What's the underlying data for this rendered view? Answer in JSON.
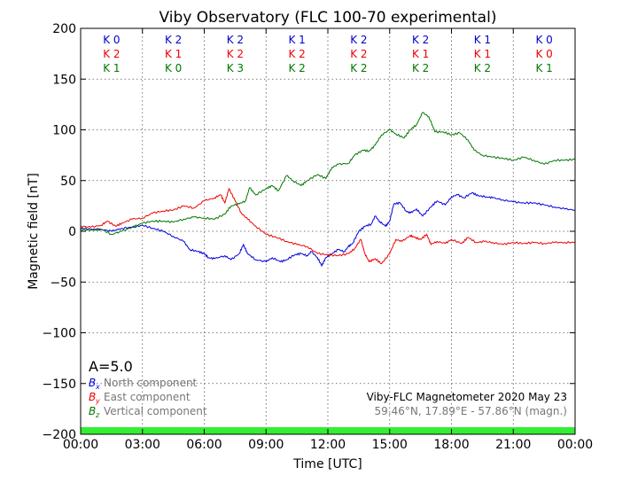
{
  "chart_data": {
    "type": "line",
    "title": "Viby Observatory (FLC 100-70 experimental)",
    "xlabel": "Time [UTC]",
    "ylabel": "Magnetic field [nT]",
    "xlim": [
      0,
      24
    ],
    "ylim": [
      -200,
      200
    ],
    "x_ticks": [
      {
        "value": 0,
        "label": "00:00"
      },
      {
        "value": 3,
        "label": "03:00"
      },
      {
        "value": 6,
        "label": "06:00"
      },
      {
        "value": 9,
        "label": "09:00"
      },
      {
        "value": 12,
        "label": "12:00"
      },
      {
        "value": 15,
        "label": "15:00"
      },
      {
        "value": 18,
        "label": "18:00"
      },
      {
        "value": 21,
        "label": "21:00"
      },
      {
        "value": 24,
        "label": "00:00"
      }
    ],
    "y_ticks": [
      {
        "value": 200,
        "label": "200"
      },
      {
        "value": 150,
        "label": "150"
      },
      {
        "value": 100,
        "label": "100"
      },
      {
        "value": 50,
        "label": "50"
      },
      {
        "value": 0,
        "label": "0"
      },
      {
        "value": -50,
        "label": "−50"
      },
      {
        "value": -100,
        "label": "−100"
      },
      {
        "value": -150,
        "label": "−150"
      },
      {
        "value": -200,
        "label": "−200"
      }
    ],
    "grid": true,
    "activity_band": {
      "ymin": -200,
      "ymax": -193,
      "color": "#33ee33"
    },
    "k_index": {
      "intervals_start": [
        1.5,
        4.5,
        7.5,
        10.5,
        13.5,
        16.5,
        19.5,
        22.5
      ],
      "rows": [
        {
          "color": "#0000cc",
          "labels": [
            "K 0",
            "K 2",
            "K 2",
            "K 1",
            "K 2",
            "K 2",
            "K 1",
            "K 0"
          ]
        },
        {
          "color": "#ee0000",
          "labels": [
            "K 2",
            "K 1",
            "K 2",
            "K 2",
            "K 2",
            "K 1",
            "K 1",
            "K 0"
          ]
        },
        {
          "color": "#007700",
          "labels": [
            "K 1",
            "K 0",
            "K 3",
            "K 2",
            "K 2",
            "K 2",
            "K 2",
            "K 1"
          ]
        }
      ]
    },
    "a_index": "A=5.0",
    "legend_position": "bottom-left",
    "legend": [
      {
        "symbol": "B",
        "sub": "x",
        "label": "North component",
        "color": "#0000dd"
      },
      {
        "symbol": "B",
        "sub": "y",
        "label": "East component",
        "color": "#ee0000"
      },
      {
        "symbol": "B",
        "sub": "z",
        "label": "Vertical component",
        "color": "#007700"
      }
    ],
    "info_line1": "Viby-FLC Magnetometer 2020 May 23",
    "info_line2": "59.46°N, 17.89°E - 57.86°N (magn.)",
    "series": [
      {
        "name": "North component",
        "color": "#0000dd",
        "points": [
          [
            0,
            3
          ],
          [
            0.5,
            2
          ],
          [
            1,
            2
          ],
          [
            1.5,
            0
          ],
          [
            2,
            3
          ],
          [
            2.5,
            4
          ],
          [
            3,
            6
          ],
          [
            3.5,
            3
          ],
          [
            4,
            0
          ],
          [
            4.5,
            -5
          ],
          [
            5,
            -10
          ],
          [
            5.3,
            -18
          ],
          [
            5.7,
            -20
          ],
          [
            6,
            -22
          ],
          [
            6.2,
            -26
          ],
          [
            6.5,
            -27
          ],
          [
            7,
            -24
          ],
          [
            7.3,
            -28
          ],
          [
            7.7,
            -22
          ],
          [
            7.9,
            -13
          ],
          [
            8.1,
            -22
          ],
          [
            8.5,
            -28
          ],
          [
            9,
            -30
          ],
          [
            9.3,
            -26
          ],
          [
            9.7,
            -30
          ],
          [
            10,
            -28
          ],
          [
            10.4,
            -23
          ],
          [
            10.7,
            -22
          ],
          [
            11,
            -24
          ],
          [
            11.2,
            -20
          ],
          [
            11.5,
            -26
          ],
          [
            11.7,
            -34
          ],
          [
            11.9,
            -26
          ],
          [
            12.2,
            -22
          ],
          [
            12.5,
            -18
          ],
          [
            12.8,
            -20
          ],
          [
            13,
            -15
          ],
          [
            13.2,
            -12
          ],
          [
            13.5,
            0
          ],
          [
            13.8,
            5
          ],
          [
            14.1,
            7
          ],
          [
            14.3,
            15
          ],
          [
            14.5,
            10
          ],
          [
            14.8,
            5
          ],
          [
            15,
            10
          ],
          [
            15.2,
            27
          ],
          [
            15.5,
            28
          ],
          [
            15.8,
            20
          ],
          [
            16,
            18
          ],
          [
            16.3,
            22
          ],
          [
            16.6,
            15
          ],
          [
            17,
            24
          ],
          [
            17.3,
            30
          ],
          [
            17.7,
            26
          ],
          [
            18,
            34
          ],
          [
            18.3,
            36
          ],
          [
            18.6,
            33
          ],
          [
            19,
            38
          ],
          [
            19.3,
            35
          ],
          [
            19.7,
            34
          ],
          [
            20,
            33
          ],
          [
            20.5,
            31
          ],
          [
            21,
            29
          ],
          [
            21.5,
            28
          ],
          [
            22,
            28
          ],
          [
            22.5,
            26
          ],
          [
            23,
            24
          ],
          [
            23.5,
            22
          ],
          [
            24,
            21
          ]
        ]
      },
      {
        "name": "East component",
        "color": "#ee0000",
        "points": [
          [
            0,
            5
          ],
          [
            0.5,
            4
          ],
          [
            1,
            6
          ],
          [
            1.3,
            10
          ],
          [
            1.7,
            5
          ],
          [
            2,
            8
          ],
          [
            2.5,
            12
          ],
          [
            3,
            13
          ],
          [
            3.5,
            18
          ],
          [
            4,
            20
          ],
          [
            4.5,
            21
          ],
          [
            5,
            25
          ],
          [
            5.5,
            23
          ],
          [
            6,
            30
          ],
          [
            6.5,
            33
          ],
          [
            6.8,
            36
          ],
          [
            7,
            28
          ],
          [
            7.2,
            42
          ],
          [
            7.5,
            30
          ],
          [
            7.8,
            18
          ],
          [
            8.1,
            12
          ],
          [
            8.5,
            5
          ],
          [
            9,
            -3
          ],
          [
            9.5,
            -6
          ],
          [
            10,
            -10
          ],
          [
            10.5,
            -13
          ],
          [
            11,
            -15
          ],
          [
            11.5,
            -22
          ],
          [
            12,
            -23
          ],
          [
            12.5,
            -24
          ],
          [
            13,
            -22
          ],
          [
            13.3,
            -17
          ],
          [
            13.6,
            -8
          ],
          [
            13.8,
            -22
          ],
          [
            14,
            -30
          ],
          [
            14.3,
            -27
          ],
          [
            14.6,
            -32
          ],
          [
            15,
            -22
          ],
          [
            15.3,
            -8
          ],
          [
            15.6,
            -10
          ],
          [
            16,
            -4
          ],
          [
            16.2,
            -6
          ],
          [
            16.5,
            -8
          ],
          [
            16.8,
            -3
          ],
          [
            17,
            -13
          ],
          [
            17.3,
            -10
          ],
          [
            17.7,
            -12
          ],
          [
            18,
            -8
          ],
          [
            18.5,
            -12
          ],
          [
            18.8,
            -6
          ],
          [
            19.2,
            -11
          ],
          [
            19.6,
            -10
          ],
          [
            20,
            -11
          ],
          [
            20.5,
            -13
          ],
          [
            21,
            -11
          ],
          [
            21.5,
            -12
          ],
          [
            22,
            -11
          ],
          [
            22.5,
            -12
          ],
          [
            23,
            -11
          ],
          [
            23.5,
            -11
          ],
          [
            24,
            -11
          ]
        ]
      },
      {
        "name": "Vertical component",
        "color": "#007700",
        "points": [
          [
            0,
            2
          ],
          [
            0.5,
            1
          ],
          [
            1,
            2
          ],
          [
            1.5,
            -3
          ],
          [
            2,
            0
          ],
          [
            2.5,
            4
          ],
          [
            3,
            8
          ],
          [
            3.5,
            10
          ],
          [
            4,
            10
          ],
          [
            4.5,
            9
          ],
          [
            5,
            12
          ],
          [
            5.5,
            14
          ],
          [
            6,
            13
          ],
          [
            6.5,
            12
          ],
          [
            7,
            17
          ],
          [
            7.3,
            25
          ],
          [
            7.7,
            27
          ],
          [
            8,
            30
          ],
          [
            8.2,
            43
          ],
          [
            8.5,
            36
          ],
          [
            9,
            42
          ],
          [
            9.3,
            45
          ],
          [
            9.6,
            40
          ],
          [
            10,
            55
          ],
          [
            10.3,
            50
          ],
          [
            10.7,
            45
          ],
          [
            11,
            50
          ],
          [
            11.5,
            56
          ],
          [
            11.9,
            52
          ],
          [
            12.2,
            63
          ],
          [
            12.5,
            66
          ],
          [
            13,
            67
          ],
          [
            13.3,
            75
          ],
          [
            13.7,
            80
          ],
          [
            14,
            79
          ],
          [
            14.3,
            85
          ],
          [
            14.6,
            95
          ],
          [
            15,
            100
          ],
          [
            15.3,
            96
          ],
          [
            15.7,
            92
          ],
          [
            16,
            100
          ],
          [
            16.3,
            105
          ],
          [
            16.6,
            117
          ],
          [
            16.9,
            113
          ],
          [
            17.2,
            98
          ],
          [
            17.6,
            98
          ],
          [
            18,
            95
          ],
          [
            18.4,
            97
          ],
          [
            18.8,
            90
          ],
          [
            19.1,
            80
          ],
          [
            19.5,
            75
          ],
          [
            20,
            73
          ],
          [
            20.5,
            72
          ],
          [
            21,
            70
          ],
          [
            21.5,
            73
          ],
          [
            22,
            70
          ],
          [
            22.5,
            66
          ],
          [
            23,
            70
          ],
          [
            23.5,
            70
          ],
          [
            24,
            71
          ]
        ]
      }
    ]
  }
}
